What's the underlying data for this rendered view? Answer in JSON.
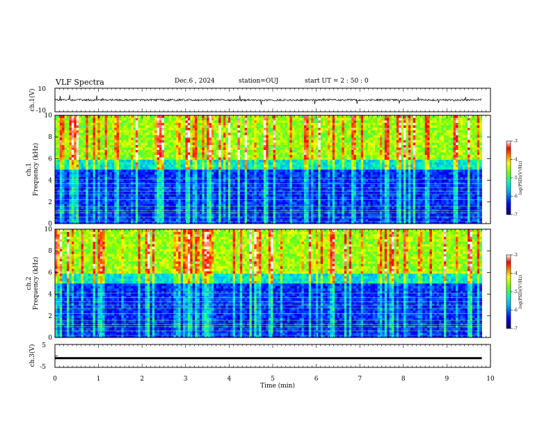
{
  "header": {
    "title": "VLF Spectra",
    "date": "Dec.6 , 2024",
    "station": "station=OUJ",
    "start": "start UT = 2 : 50 : 0"
  },
  "chart_data": [
    {
      "type": "line",
      "panel": "ch1-waveform",
      "ylabel": "ch.1(V)",
      "ylim": [
        -10,
        10
      ],
      "yticks": [
        "10",
        "-10"
      ],
      "baseline": 0,
      "note_series": "broadband waveform with impulsive spikes"
    },
    {
      "type": "heatmap",
      "panel": "ch1-spectrogram",
      "ylabel_top": "ch.1",
      "ylabel": "Frequency (kHz)",
      "ylim": [
        0,
        10
      ],
      "yticks": [
        "0",
        "2",
        "4",
        "6",
        "8",
        "10"
      ],
      "xlim": [
        0,
        10
      ],
      "data_extent_min": 9.8,
      "colorbar": {
        "label": "log(PSD)(V²/Hz)",
        "range": [
          -7,
          -3
        ],
        "ticks": [
          "-3",
          "-4",
          "-5",
          "-6",
          "-7"
        ],
        "colors": [
          "#000080",
          "#0000ff",
          "#00a0ff",
          "#00ffc0",
          "#80ff00",
          "#ffff00",
          "#ff8000",
          "#ff0000",
          "#ffffff"
        ]
      },
      "features": {
        "background_above_6kHz_log_psd": -4.6,
        "background_below_5kHz_log_psd": -6.3,
        "sferic_count_visible": 120,
        "narrowband_lines_khz": [
          0.2,
          0.6,
          1.0,
          1.2,
          1.6,
          2.2,
          2.7,
          3.0,
          3.3,
          3.7,
          4.1
        ]
      }
    },
    {
      "type": "heatmap",
      "panel": "ch2-spectrogram",
      "ylabel_top": "ch.2",
      "ylabel": "Frequency (kHz)",
      "ylim": [
        0,
        10
      ],
      "yticks": [
        "0",
        "2",
        "4",
        "6",
        "8",
        "10"
      ],
      "xlim": [
        0,
        10
      ],
      "data_extent_min": 9.8,
      "colorbar": {
        "label": "log(PSD)(V²/Hz)",
        "range": [
          -7,
          -3
        ],
        "ticks": [
          "-3",
          "-4",
          "-5",
          "-6",
          "-7"
        ]
      }
    },
    {
      "type": "line",
      "panel": "ch3-waveform",
      "ylabel": "ch.3(V)",
      "ylim": [
        -5,
        5
      ],
      "yticks": [
        "5",
        "0",
        "-5"
      ],
      "baseline": -1,
      "note_series": "near-constant level"
    }
  ],
  "xaxis": {
    "label": "Time (min)",
    "ticks": [
      "0",
      "1",
      "2",
      "3",
      "4",
      "5",
      "6",
      "7",
      "8",
      "9",
      "10"
    ],
    "range": [
      0,
      10
    ]
  },
  "colors": {
    "axis": "#000000",
    "trace": "#000000"
  }
}
